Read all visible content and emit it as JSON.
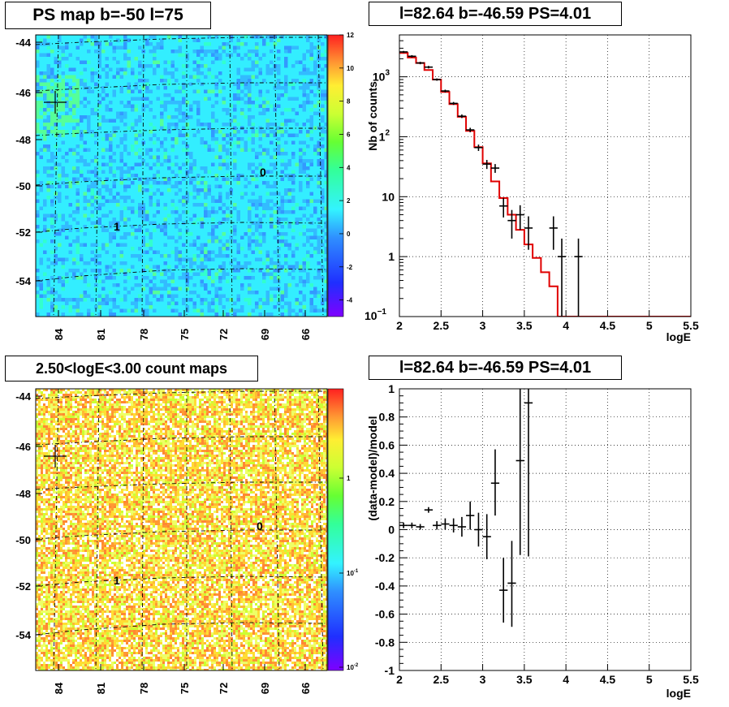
{
  "panels": {
    "top_left_title": "PS map b=-50 l=75",
    "top_right_title": "l=82.64 b=-46.59 PS=4.01",
    "bottom_left_title": "2.50<logE<3.00 count maps",
    "bottom_right_title": "l=82.64 b=-46.59 PS=4.01"
  },
  "chart_data": [
    {
      "type": "heatmap",
      "title": "PS map b=-50 l=75",
      "y_ticks": [
        "-44",
        "-46",
        "-48",
        "-50",
        "-52",
        "-54"
      ],
      "x_ticks": [
        "84",
        "81",
        "78",
        "75",
        "72",
        "69",
        "66"
      ],
      "colorbar_ticks": [
        "12",
        "10",
        "8",
        "6",
        "4",
        "2",
        "0",
        "-2",
        "-4"
      ],
      "colorbar_range": [
        -5,
        12
      ],
      "grid_labels": [
        "0",
        "1"
      ],
      "marker": {
        "l": 82.64,
        "b": -46.59
      }
    },
    {
      "type": "line",
      "title": "l=82.64 b=-46.59 PS=4.01",
      "xlabel": "logE",
      "ylabel": "Nb of counts",
      "xlim": [
        2,
        5.5
      ],
      "ylim": [
        0.1,
        5000
      ],
      "y_log": true,
      "grid": true,
      "x_ticks": [
        "2",
        "2.5",
        "3",
        "3.5",
        "4",
        "4.5",
        "5",
        "5.5"
      ],
      "y_ticks": [
        "10",
        "1",
        "10"
      ],
      "y_tick_exponents": [
        "3",
        "2",
        ""
      ],
      "y_tick_min": "10",
      "y_tick_min_exponent": "−1",
      "model_color": "#e00000",
      "model_edges": [
        2.0,
        2.1,
        2.2,
        2.3,
        2.4,
        2.5,
        2.6,
        2.7,
        2.8,
        2.9,
        3.0,
        3.1,
        3.2,
        3.3,
        3.4,
        3.5,
        3.6,
        3.7,
        3.8,
        3.9,
        4.0,
        5.5
      ],
      "model_values": [
        2500,
        2100,
        1700,
        1300,
        900,
        560,
        350,
        215,
        125,
        67,
        36,
        18,
        9.5,
        5.0,
        2.8,
        1.6,
        0.95,
        0.55,
        0.32,
        0.1,
        0.1
      ],
      "data_points": [
        {
          "x": 2.05,
          "y": 2600,
          "lo": 2500,
          "hi": 2700
        },
        {
          "x": 2.15,
          "y": 2200,
          "lo": 2100,
          "hi": 2300
        },
        {
          "x": 2.25,
          "y": 1700,
          "lo": 1620,
          "hi": 1780
        },
        {
          "x": 2.35,
          "y": 1450,
          "lo": 1380,
          "hi": 1520
        },
        {
          "x": 2.45,
          "y": 900,
          "lo": 860,
          "hi": 940
        },
        {
          "x": 2.55,
          "y": 580,
          "lo": 550,
          "hi": 610
        },
        {
          "x": 2.65,
          "y": 360,
          "lo": 340,
          "hi": 380
        },
        {
          "x": 2.75,
          "y": 220,
          "lo": 205,
          "hi": 235
        },
        {
          "x": 2.85,
          "y": 130,
          "lo": 119,
          "hi": 141
        },
        {
          "x": 2.95,
          "y": 66,
          "lo": 58,
          "hi": 74
        },
        {
          "x": 3.05,
          "y": 35,
          "lo": 29,
          "hi": 41
        },
        {
          "x": 3.15,
          "y": 30,
          "lo": 25,
          "hi": 35
        },
        {
          "x": 3.25,
          "y": 7,
          "lo": 4.5,
          "hi": 9.5
        },
        {
          "x": 3.35,
          "y": 4,
          "lo": 2,
          "hi": 6
        },
        {
          "x": 3.45,
          "y": 5,
          "lo": 2.8,
          "hi": 7.2
        },
        {
          "x": 3.55,
          "y": 3,
          "lo": 1.3,
          "hi": 4.7
        },
        {
          "x": 3.85,
          "y": 3,
          "lo": 1.3,
          "hi": 4.7
        },
        {
          "x": 3.95,
          "y": 1,
          "lo": 0.1,
          "hi": 2
        },
        {
          "x": 4.15,
          "y": 1,
          "lo": 0.1,
          "hi": 2
        }
      ]
    },
    {
      "type": "heatmap",
      "title": "2.50<logE<3.00 count maps",
      "y_ticks": [
        "-44",
        "-46",
        "-48",
        "-50",
        "-52",
        "-54"
      ],
      "x_ticks": [
        "84",
        "81",
        "78",
        "75",
        "72",
        "69",
        "66"
      ],
      "colorbar_log_ticks": [
        {
          "mantissa": "1",
          "exponent": ""
        },
        {
          "mantissa": "10",
          "exponent": "-1"
        },
        {
          "mantissa": "10",
          "exponent": "-2"
        }
      ],
      "grid_labels": [
        "0",
        "1"
      ],
      "marker": {
        "l": 82.64,
        "b": -46.59
      }
    },
    {
      "type": "scatter",
      "title": "l=82.64 b=-46.59 PS=4.01",
      "xlabel": "logE",
      "ylabel": "(data-model)/model",
      "xlim": [
        2,
        5.5
      ],
      "ylim": [
        -1,
        1
      ],
      "grid": true,
      "x_ticks": [
        "2",
        "2.5",
        "3",
        "3.5",
        "4",
        "4.5",
        "5",
        "5.5"
      ],
      "y_ticks": [
        "1",
        "0.8",
        "0.6",
        "0.4",
        "0.2",
        "0",
        "-0.2",
        "-0.4",
        "-0.6",
        "-0.8",
        "-1"
      ],
      "data_points": [
        {
          "x": 2.05,
          "y": 0.03,
          "lo": 0.01,
          "hi": 0.05
        },
        {
          "x": 2.15,
          "y": 0.03,
          "lo": 0.01,
          "hi": 0.05
        },
        {
          "x": 2.25,
          "y": 0.02,
          "lo": 0.0,
          "hi": 0.04
        },
        {
          "x": 2.35,
          "y": 0.14,
          "lo": 0.12,
          "hi": 0.16
        },
        {
          "x": 2.45,
          "y": 0.03,
          "lo": 0.0,
          "hi": 0.06
        },
        {
          "x": 2.55,
          "y": 0.04,
          "lo": 0.0,
          "hi": 0.08
        },
        {
          "x": 2.65,
          "y": 0.03,
          "lo": -0.02,
          "hi": 0.08
        },
        {
          "x": 2.75,
          "y": 0.02,
          "lo": -0.05,
          "hi": 0.09
        },
        {
          "x": 2.85,
          "y": 0.1,
          "lo": 0.0,
          "hi": 0.2
        },
        {
          "x": 2.95,
          "y": 0.0,
          "lo": -0.12,
          "hi": 0.12
        },
        {
          "x": 3.05,
          "y": -0.05,
          "lo": -0.21,
          "hi": 0.11
        },
        {
          "x": 3.15,
          "y": 0.33,
          "lo": 0.1,
          "hi": 0.57
        },
        {
          "x": 3.25,
          "y": -0.43,
          "lo": -0.66,
          "hi": -0.2
        },
        {
          "x": 3.35,
          "y": -0.38,
          "lo": -0.69,
          "hi": -0.08
        },
        {
          "x": 3.45,
          "y": 0.49,
          "lo": -0.18,
          "hi": 1.0
        },
        {
          "x": 3.55,
          "y": 0.9,
          "lo": -0.19,
          "hi": 1.0
        }
      ]
    }
  ]
}
